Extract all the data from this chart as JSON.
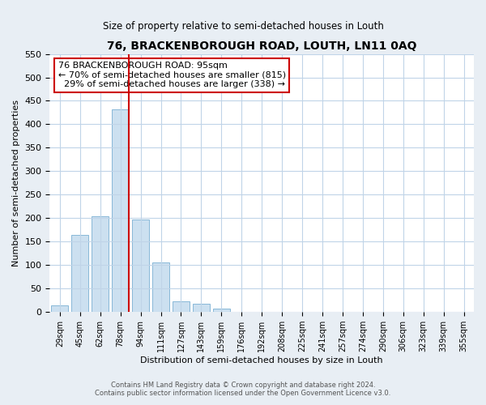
{
  "title": "76, BRACKENBOROUGH ROAD, LOUTH, LN11 0AQ",
  "subtitle": "Size of property relative to semi-detached houses in Louth",
  "xlabel": "Distribution of semi-detached houses by size in Louth",
  "ylabel": "Number of semi-detached properties",
  "categories": [
    "29sqm",
    "45sqm",
    "62sqm",
    "78sqm",
    "94sqm",
    "111sqm",
    "127sqm",
    "143sqm",
    "159sqm",
    "176sqm",
    "192sqm",
    "208sqm",
    "225sqm",
    "241sqm",
    "257sqm",
    "274sqm",
    "290sqm",
    "306sqm",
    "323sqm",
    "339sqm",
    "355sqm"
  ],
  "values": [
    15,
    165,
    204,
    432,
    197,
    105,
    22,
    18,
    7,
    1,
    1,
    1,
    0,
    0,
    1,
    0,
    0,
    0,
    0,
    0,
    1
  ],
  "bar_color": "#cce0f0",
  "bar_edge_color": "#88b8d8",
  "red_line_bar_index": 4,
  "annotation_title": "76 BRACKENBOROUGH ROAD: 95sqm",
  "annotation_line1": "← 70% of semi-detached houses are smaller (815)",
  "annotation_line2": "  29% of semi-detached houses are larger (338) →",
  "annotation_box_facecolor": "#ffffff",
  "annotation_box_edgecolor": "#cc0000",
  "ylim": [
    0,
    550
  ],
  "yticks": [
    0,
    50,
    100,
    150,
    200,
    250,
    300,
    350,
    400,
    450,
    500,
    550
  ],
  "footer_line1": "Contains HM Land Registry data © Crown copyright and database right 2024.",
  "footer_line2": "Contains public sector information licensed under the Open Government Licence v3.0.",
  "bg_color": "#e8eef4",
  "plot_bg_color": "#ffffff",
  "grid_color": "#c0d4e8"
}
